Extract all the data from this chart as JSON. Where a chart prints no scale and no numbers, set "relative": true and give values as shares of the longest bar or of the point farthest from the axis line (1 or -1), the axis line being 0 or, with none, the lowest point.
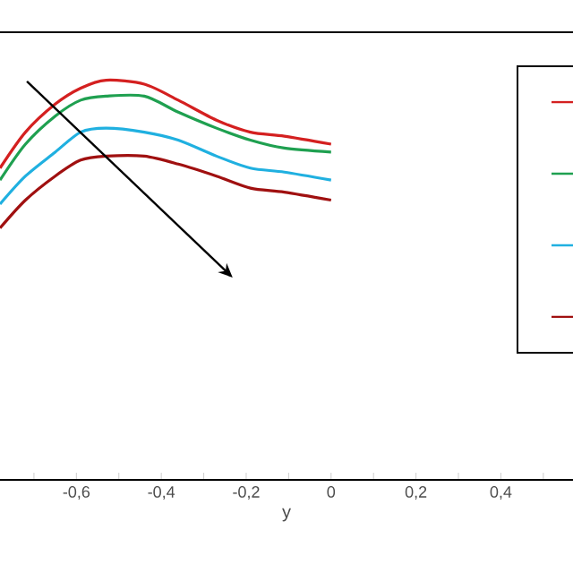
{
  "chart_data": {
    "type": "line",
    "relative": true,
    "xlabel": "y",
    "x": [
      -0.78,
      -0.72,
      -0.65,
      -0.59,
      -0.53,
      -0.44,
      -0.36,
      -0.27,
      -0.19,
      -0.11,
      0
    ],
    "series": [
      {
        "color": "#d42020",
        "values": [
          0.78,
          0.87,
          0.94,
          0.98,
          1.0,
          0.99,
          0.95,
          0.9,
          0.87,
          0.86,
          0.84
        ]
      },
      {
        "color": "#1fa050",
        "values": [
          0.75,
          0.84,
          0.91,
          0.95,
          0.96,
          0.96,
          0.92,
          0.88,
          0.85,
          0.83,
          0.82
        ]
      },
      {
        "color": "#20b0e0",
        "values": [
          0.69,
          0.76,
          0.82,
          0.87,
          0.88,
          0.87,
          0.85,
          0.81,
          0.78,
          0.77,
          0.75
        ]
      },
      {
        "color": "#a01010",
        "values": [
          0.63,
          0.7,
          0.76,
          0.8,
          0.81,
          0.81,
          0.79,
          0.76,
          0.73,
          0.72,
          0.7
        ]
      }
    ],
    "xlim": [
      -0.78,
      0.57
    ],
    "xticks": [
      {
        "value": -0.7,
        "label": null
      },
      {
        "value": -0.6,
        "label": "-0,6"
      },
      {
        "value": -0.5,
        "label": null
      },
      {
        "value": -0.4,
        "label": "-0,4"
      },
      {
        "value": -0.3,
        "label": null
      },
      {
        "value": -0.2,
        "label": "-0,2"
      },
      {
        "value": -0.1,
        "label": null
      },
      {
        "value": 0,
        "label": "0"
      },
      {
        "value": 0.1,
        "label": null
      },
      {
        "value": 0.2,
        "label": "0,2"
      },
      {
        "value": 0.3,
        "label": null
      },
      {
        "value": 0.4,
        "label": "0,4"
      },
      {
        "value": 0.5,
        "label": null
      }
    ],
    "marker": "none",
    "line_style": "solid"
  }
}
